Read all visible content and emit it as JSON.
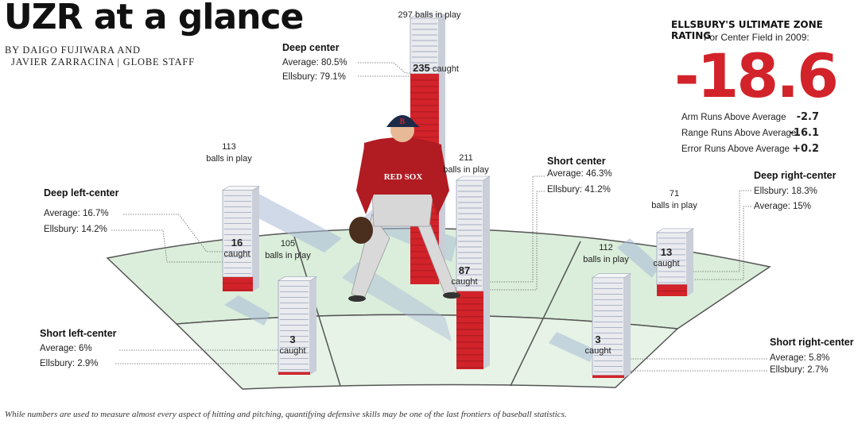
{
  "header": {
    "title": "UZR at a glance",
    "byline_1": "BY DAIGO FUJIWARA AND",
    "byline_2": "JAVIER ZARRACINA | GLOBE STAFF"
  },
  "rating": {
    "title": "ELLSBURY'S ULTIMATE ZONE RATING",
    "subtitle": "For Center Field in 2009:",
    "value": "-18.6",
    "rows": [
      {
        "label": "Arm Runs Above Average",
        "value": "-2.7"
      },
      {
        "label": "Range Runs Above Average",
        "value": "-16.1"
      },
      {
        "label": "Error Runs Above Average",
        "value": "+0.2"
      }
    ]
  },
  "zones": [
    {
      "name": "Deep left-center",
      "average_label": "Average: 16.7%",
      "ellsbury_label": "Ellsbury: 14.2%",
      "balls_in_play": "113",
      "balls_label": "balls in play",
      "caught": "16",
      "caught_label": "caught"
    },
    {
      "name": "Short left-center",
      "average_label": "Average: 6%",
      "ellsbury_label": "Ellsbury: 2.9%",
      "balls_in_play": "105",
      "balls_label": "balls in play",
      "caught": "3",
      "caught_label": "caught"
    },
    {
      "name": "Deep center",
      "average_label": "Average: 80.5%",
      "ellsbury_label": "Ellsbury: 79.1%",
      "balls_in_play": "297 balls in play",
      "balls_label": "",
      "caught": "235",
      "caught_label": "caught"
    },
    {
      "name": "Short center",
      "average_label": "Average: 46.3%",
      "ellsbury_label": "Ellsbury: 41.2%",
      "balls_in_play": "211",
      "balls_label": "balls in play",
      "caught": "87",
      "caught_label": "caught"
    },
    {
      "name": "Deep right-center",
      "average_label": "Average: 15%",
      "ellsbury_label": "Ellsbury: 18.3%",
      "balls_in_play": "71",
      "balls_label": "balls in play",
      "caught": "13",
      "caught_label": "caught"
    },
    {
      "name": "Short right-center",
      "average_label": "Average: 5.8%",
      "ellsbury_label": "Ellsbury: 2.7%",
      "balls_in_play": "112",
      "balls_label": "balls in play",
      "caught": "3",
      "caught_label": "caught"
    }
  ],
  "jersey_text": "RED SOX",
  "cap_letter": "B",
  "caption": "While numbers are used to measure almost every aspect of hitting and pitching, quantifying defensive skills may be one of the last frontiers of baseball statistics.",
  "colors": {
    "red": "#d2232a",
    "field": "#cfe4cf",
    "field_line": "#555555",
    "bar_white": "#e9ebef"
  },
  "chart_data": {
    "type": "bar",
    "categories": [
      "Deep left-center",
      "Short left-center",
      "Deep center",
      "Short center",
      "Deep right-center",
      "Short right-center"
    ],
    "series": [
      {
        "name": "balls in play",
        "values": [
          113,
          105,
          297,
          211,
          71,
          112
        ]
      },
      {
        "name": "caught",
        "values": [
          16,
          3,
          235,
          87,
          13,
          3
        ]
      }
    ],
    "average_pct": [
      16.7,
      6,
      80.5,
      46.3,
      15,
      5.8
    ],
    "ellsbury_pct": [
      14.2,
      2.9,
      79.1,
      41.2,
      18.3,
      2.7
    ]
  }
}
